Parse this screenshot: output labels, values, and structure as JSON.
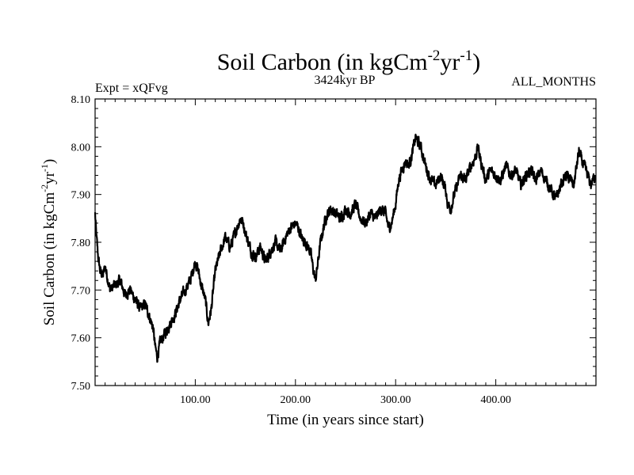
{
  "chart_data": {
    "type": "line",
    "title": {
      "main": "Soil Carbon (in kgCm",
      "sup1": "-2",
      "middle": "yr",
      "sup2": "-1",
      "end": ")"
    },
    "subtitle_left": "Expt = xQFvg",
    "subtitle_center": "3424kyr BP",
    "subtitle_right": "ALL_MONTHS",
    "xlabel": "Time (in years since start)",
    "ylabel": {
      "main": "Soil Carbon (in kgCm",
      "sup1": "-2",
      "middle": "yr",
      "sup2": "-1",
      "end": ")"
    },
    "xlim": [
      0,
      500
    ],
    "ylim": [
      7.5,
      8.1
    ],
    "x_ticks": [
      {
        "value": 100,
        "label": "100.00"
      },
      {
        "value": 200,
        "label": "200.00"
      },
      {
        "value": 300,
        "label": "300.00"
      },
      {
        "value": 400,
        "label": "400.00"
      }
    ],
    "y_ticks": [
      {
        "value": 7.5,
        "label": "7.50"
      },
      {
        "value": 7.6,
        "label": "7.60"
      },
      {
        "value": 7.7,
        "label": "7.70"
      },
      {
        "value": 7.8,
        "label": "7.80"
      },
      {
        "value": 7.9,
        "label": "7.90"
      },
      {
        "value": 8.0,
        "label": "8.00"
      },
      {
        "value": 8.1,
        "label": "8.10"
      }
    ],
    "series": [
      {
        "name": "Soil Carbon",
        "color": "#000000",
        "x": [
          0,
          1,
          3,
          5,
          8,
          10,
          15,
          20,
          25,
          30,
          35,
          40,
          45,
          50,
          55,
          58,
          60,
          62,
          65,
          70,
          75,
          80,
          85,
          90,
          95,
          100,
          103,
          106,
          110,
          113,
          116,
          118,
          120,
          125,
          130,
          135,
          140,
          145,
          148,
          150,
          153,
          156,
          160,
          165,
          170,
          175,
          180,
          185,
          190,
          195,
          200,
          203,
          206,
          210,
          215,
          218,
          220,
          222,
          225,
          230,
          235,
          240,
          245,
          250,
          255,
          260,
          265,
          270,
          275,
          280,
          285,
          290,
          293,
          296,
          300,
          303,
          306,
          310,
          313,
          316,
          320,
          325,
          330,
          335,
          340,
          345,
          350,
          352,
          355,
          360,
          365,
          370,
          375,
          380,
          382,
          385,
          390,
          395,
          400,
          405,
          410,
          415,
          420,
          425,
          430,
          435,
          440,
          445,
          450,
          455,
          460,
          465,
          470,
          475,
          478,
          480,
          483,
          486,
          490,
          495,
          499
        ],
        "y": [
          7.86,
          7.82,
          7.77,
          7.74,
          7.73,
          7.75,
          7.7,
          7.71,
          7.72,
          7.69,
          7.7,
          7.68,
          7.66,
          7.67,
          7.64,
          7.62,
          7.58,
          7.56,
          7.59,
          7.61,
          7.63,
          7.65,
          7.68,
          7.7,
          7.72,
          7.76,
          7.74,
          7.71,
          7.68,
          7.63,
          7.66,
          7.7,
          7.74,
          7.78,
          7.81,
          7.79,
          7.82,
          7.85,
          7.84,
          7.82,
          7.8,
          7.78,
          7.77,
          7.79,
          7.76,
          7.78,
          7.8,
          7.78,
          7.81,
          7.83,
          7.84,
          7.83,
          7.81,
          7.8,
          7.78,
          7.74,
          7.72,
          7.75,
          7.8,
          7.85,
          7.87,
          7.86,
          7.85,
          7.87,
          7.86,
          7.88,
          7.85,
          7.84,
          7.86,
          7.85,
          7.87,
          7.86,
          7.83,
          7.84,
          7.88,
          7.93,
          7.95,
          7.97,
          7.96,
          7.98,
          8.02,
          8.0,
          7.96,
          7.93,
          7.92,
          7.94,
          7.91,
          7.88,
          7.87,
          7.91,
          7.94,
          7.93,
          7.96,
          7.98,
          8.0,
          7.97,
          7.93,
          7.95,
          7.94,
          7.93,
          7.96,
          7.94,
          7.95,
          7.92,
          7.94,
          7.95,
          7.93,
          7.95,
          7.93,
          7.91,
          7.89,
          7.92,
          7.94,
          7.93,
          7.92,
          7.95,
          7.99,
          7.97,
          7.95,
          7.92,
          7.94
        ]
      }
    ]
  }
}
